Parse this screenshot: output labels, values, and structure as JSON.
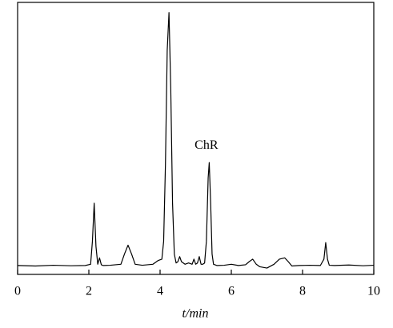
{
  "chart_data": {
    "type": "line",
    "x_label": "t/min",
    "annotation": {
      "text": "ChR",
      "x": 5.3,
      "y": 47.5
    },
    "x": [
      0,
      0.5,
      1,
      1.5,
      1.9,
      2.05,
      2.1,
      2.15,
      2.2,
      2.25,
      2.3,
      2.35,
      2.4,
      2.6,
      2.9,
      3.0,
      3.1,
      3.2,
      3.3,
      3.5,
      3.8,
      3.95,
      4.05,
      4.1,
      4.15,
      4.2,
      4.25,
      4.3,
      4.35,
      4.4,
      4.45,
      4.5,
      4.55,
      4.6,
      4.7,
      4.8,
      4.9,
      4.95,
      5.0,
      5.05,
      5.1,
      5.15,
      5.2,
      5.25,
      5.3,
      5.35,
      5.38,
      5.42,
      5.46,
      5.5,
      5.6,
      5.8,
      6.0,
      6.2,
      6.4,
      6.5,
      6.6,
      6.7,
      6.8,
      7.0,
      7.2,
      7.35,
      7.5,
      7.6,
      7.7,
      7.9,
      8.2,
      8.5,
      8.6,
      8.65,
      8.7,
      8.75,
      8.9,
      9.3,
      9.7,
      10
    ],
    "series": [
      {
        "color": "#000000",
        "values": [
          0.5,
          0.3,
          0.6,
          0.4,
          0.5,
          1,
          10,
          25,
          8,
          1,
          3.5,
          0.8,
          0.5,
          0.6,
          1,
          5,
          8.5,
          5,
          1,
          0.6,
          1,
          2.5,
          3,
          10,
          40,
          85,
          100,
          70,
          25,
          5,
          1.5,
          2,
          4,
          2,
          1,
          1.5,
          1,
          3,
          1,
          1.5,
          4,
          1,
          1,
          1.5,
          10,
          35,
          41,
          25,
          5,
          1,
          0.5,
          0.6,
          1,
          0.5,
          0.8,
          2,
          3,
          1,
          0,
          -0.5,
          1,
          3,
          3.5,
          2,
          0.3,
          0.5,
          0.6,
          0.5,
          3,
          9.5,
          3,
          0.6,
          0.5,
          0.7,
          0.4,
          0.6
        ]
      }
    ],
    "xlim": [
      0,
      10
    ],
    "xticks": [
      0,
      2,
      4,
      6,
      8,
      10
    ],
    "ylim": [
      -3,
      104
    ]
  }
}
